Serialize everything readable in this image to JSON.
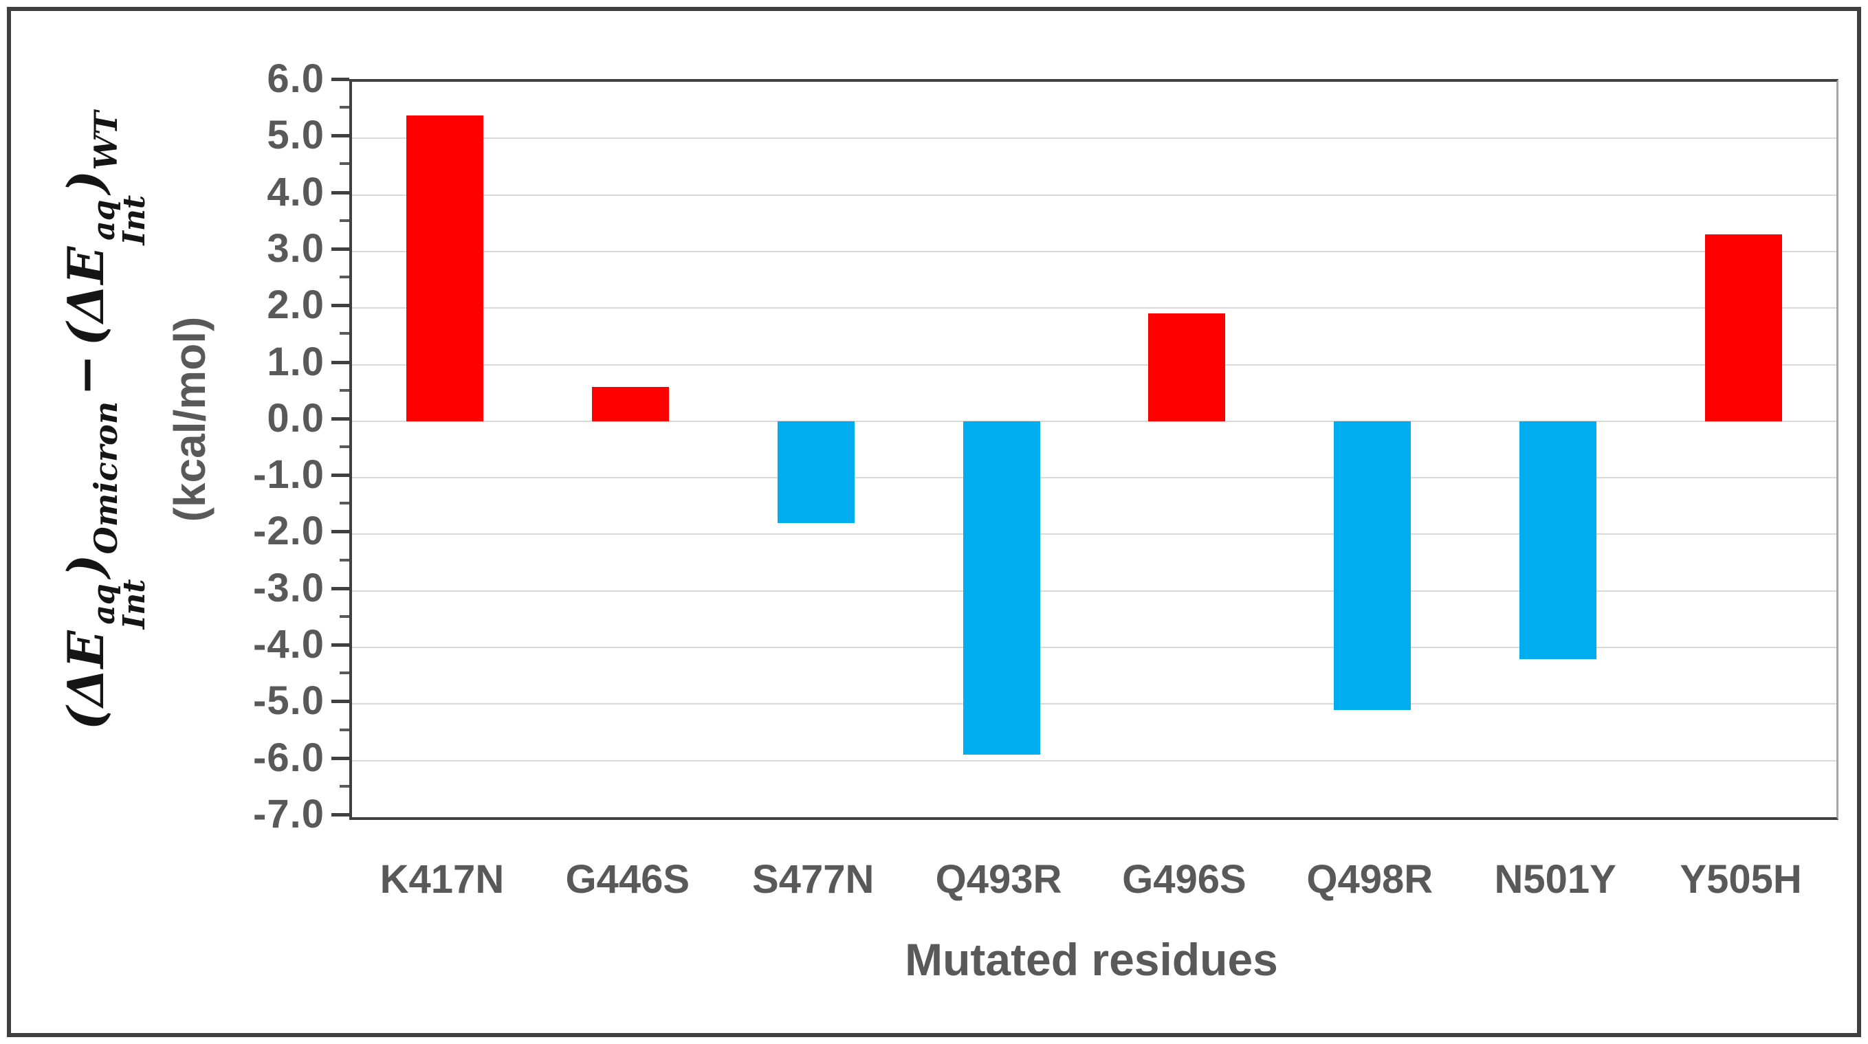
{
  "figure": {
    "kind": "bar chart figure",
    "background": "#ffffff",
    "frame_color": "#3f3f3f"
  },
  "chart_data": {
    "type": "bar",
    "title": "",
    "categories": [
      "K417N",
      "G446S",
      "S477N",
      "Q493R",
      "G496S",
      "Q498R",
      "N501Y",
      "Y505H"
    ],
    "values": [
      5.4,
      0.6,
      -1.8,
      -5.9,
      1.9,
      -5.1,
      -4.2,
      3.3
    ],
    "bar_colors": {
      "positive": "#fe0000",
      "negative": "#00aeef"
    },
    "xlabel": "Mutated residues",
    "ylabel_unit": "(kcal/mol)",
    "ylabel_parts": {
      "open_paren": "(",
      "delta_e": "ΔE",
      "sup": "aq",
      "sub": "Int",
      "close_paren": ")",
      "term1_outer_sub": "Omicron",
      "minus": "−",
      "term2_outer_sub": "WT"
    },
    "ylim": [
      -7.0,
      6.0
    ],
    "ytick_step": 1.0,
    "ytick_minor_step": 0.5,
    "ytick_decimals": 1,
    "grid": "horizontal",
    "gridline_color": "#d9d9d9",
    "legend": "none",
    "tick_label_color": "#595959",
    "axis_label_color": "#595959"
  }
}
